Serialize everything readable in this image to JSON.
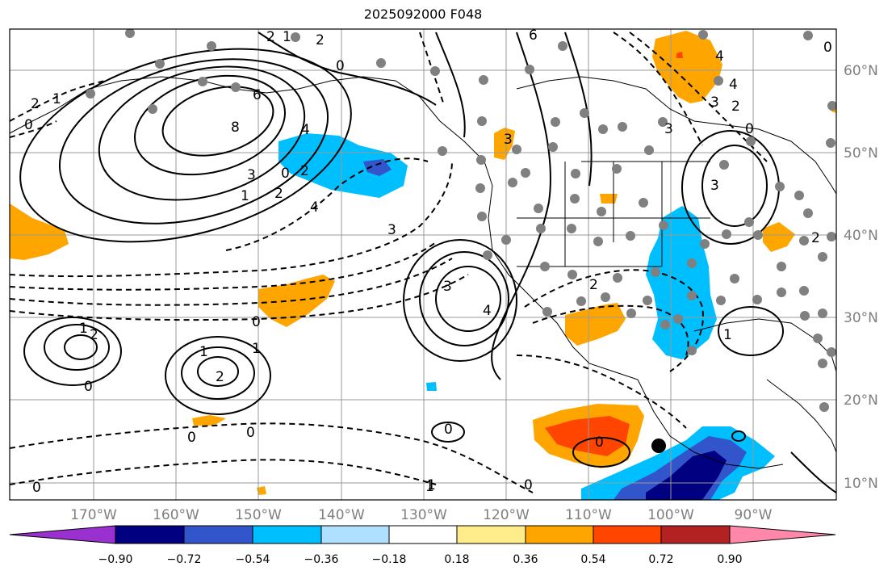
{
  "title": "2025092000 F048",
  "colors": {
    "neg_090": "#9b30d0",
    "neg_072": "#000080",
    "neg_054": "#3355cc",
    "neg_036": "#00bfff",
    "neg_018": "#b0e0ff",
    "zero": "#ffffff",
    "pos_018": "#ffec8b",
    "pos_036": "#ffa500",
    "pos_054": "#ff4500",
    "pos_072": "#b22222",
    "pos_090": "#ff88aa",
    "station": "#808080",
    "grid": "#999999",
    "axis_label": "#7f7f7f"
  },
  "lat_labels": [
    "60°N",
    "50°N",
    "40°N",
    "30°N",
    "20°N",
    "10°N"
  ],
  "lon_labels": [
    "170°W",
    "160°W",
    "150°W",
    "140°W",
    "130°W",
    "120°W",
    "110°W",
    "100°W",
    "90°W"
  ],
  "colorbar": {
    "ticks": [
      "−0.90",
      "−0.72",
      "−0.54",
      "−0.36",
      "−0.18",
      "0.18",
      "0.36",
      "0.54",
      "0.72",
      "0.90"
    ]
  },
  "contour_labels": [
    "6",
    "8",
    "4",
    "3",
    "2",
    "1",
    "0",
    "2",
    "3",
    "4",
    "0",
    "1",
    "2",
    "1",
    "2",
    "0",
    "1",
    "2",
    "0",
    "0",
    "0",
    "0",
    "1",
    "0",
    "3",
    "4",
    "2",
    "3",
    "2",
    "4",
    "3",
    "2",
    "0",
    "1",
    "2",
    "0",
    "1",
    "6",
    "4",
    "0",
    "3",
    "3",
    "2",
    "0",
    "1",
    "1",
    "0"
  ]
}
